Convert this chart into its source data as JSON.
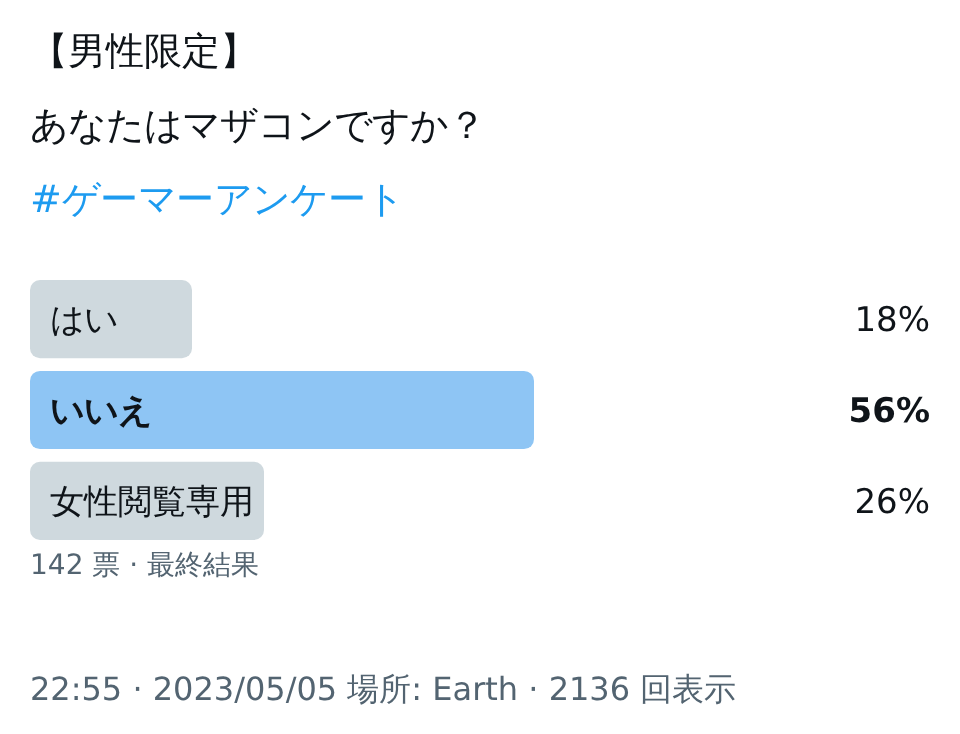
{
  "chart_data": {
    "type": "bar",
    "orientation": "horizontal",
    "title": "【男性限定】",
    "subtitle": "あなたはマザコンですか？",
    "categories": [
      "はい",
      "いいえ",
      "女性閲覧専用"
    ],
    "values": [
      18,
      56,
      26
    ],
    "colors": [
      "#cfd9de",
      "#8ec5f4",
      "#cfd9de"
    ],
    "value_labels": [
      "18%",
      "56%",
      "26%"
    ],
    "annotations": [
      "#ゲーマーアンケート",
      "142 票 · 最終結果",
      "22:55 · 2023/05/05 場所: Earth · 2136 回表示"
    ]
  }
}
